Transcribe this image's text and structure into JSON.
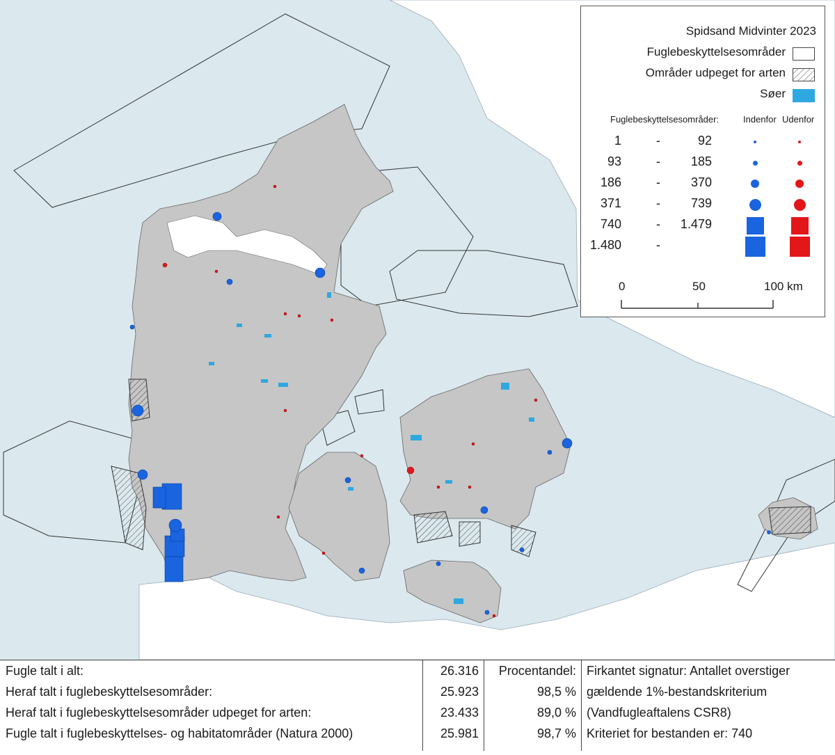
{
  "colors": {
    "sea": "#dbe9ee",
    "land": "#c6c6c6",
    "outside_land": "#ffffff",
    "inside_marker": "#1a64e0",
    "outside_marker": "#e3161a",
    "lake": "#2ea8e0",
    "boundary": "#333333"
  },
  "legend": {
    "title": "Spidsand Midvinter 2023",
    "protected_areas": "Fuglebeskyttelsesområder",
    "designated_areas": "Områder udpeget for arten",
    "lakes": "Søer",
    "subheader_label": "Fuglebeskyttelsesområder:",
    "inside": "Indenfor",
    "outside": "Udenfor",
    "classes": [
      {
        "from": "1",
        "dash": "-",
        "to": "92",
        "symbol": "circle",
        "size_rank": 1
      },
      {
        "from": "93",
        "dash": "-",
        "to": "185",
        "symbol": "circle",
        "size_rank": 2
      },
      {
        "from": "186",
        "dash": "-",
        "to": "370",
        "symbol": "circle",
        "size_rank": 3
      },
      {
        "from": "371",
        "dash": "-",
        "to": "739",
        "symbol": "circle",
        "size_rank": 4
      },
      {
        "from": "740",
        "dash": "-",
        "to": "1.479",
        "symbol": "square",
        "size_rank": 5
      },
      {
        "from": "1.480",
        "dash": "-",
        "to": "",
        "symbol": "square",
        "size_rank": 6
      }
    ],
    "scale": {
      "labels": [
        "0",
        "50",
        "100 km"
      ]
    }
  },
  "stats": {
    "rows": [
      {
        "label": "Fugle talt i alt:",
        "value": "26.316",
        "pct": "Procentandel:",
        "note": "Firkantet signatur: Antallet overstiger"
      },
      {
        "label": "Heraf talt i fuglebeskyttelsesområder:",
        "value": "25.923",
        "pct": "98,5 %",
        "note": "gældende 1%-bestandskriterium"
      },
      {
        "label": "Heraf talt i fuglebeskyttelsesområder udpeget for arten:",
        "value": "23.433",
        "pct": "89,0 %",
        "note": "(Vandfugleaftalens CSR8)"
      },
      {
        "label": "Fugle talt i fuglebeskyttelses- og habitatområder (Natura 2000)",
        "value": "25.981",
        "pct": "98,7 %",
        "note": "Kriteriet for bestanden er: 740"
      }
    ]
  },
  "map": {
    "observations_inside": [
      {
        "size_rank": 6
      },
      {
        "size_rank": 6
      },
      {
        "size_rank": 6
      },
      {
        "size_rank": 5
      },
      {
        "size_rank": 5
      },
      {
        "size_rank": 5
      },
      {
        "size_rank": 4
      },
      {
        "size_rank": 4
      },
      {
        "size_rank": 4
      },
      {
        "size_rank": 4
      },
      {
        "size_rank": 4
      },
      {
        "size_rank": 3
      },
      {
        "size_rank": 3
      },
      {
        "size_rank": 2
      },
      {
        "size_rank": 2
      },
      {
        "size_rank": 1
      }
    ],
    "observations_outside": [
      {
        "size_rank": 3
      },
      {
        "size_rank": 2
      },
      {
        "size_rank": 1
      },
      {
        "size_rank": 1
      }
    ]
  }
}
